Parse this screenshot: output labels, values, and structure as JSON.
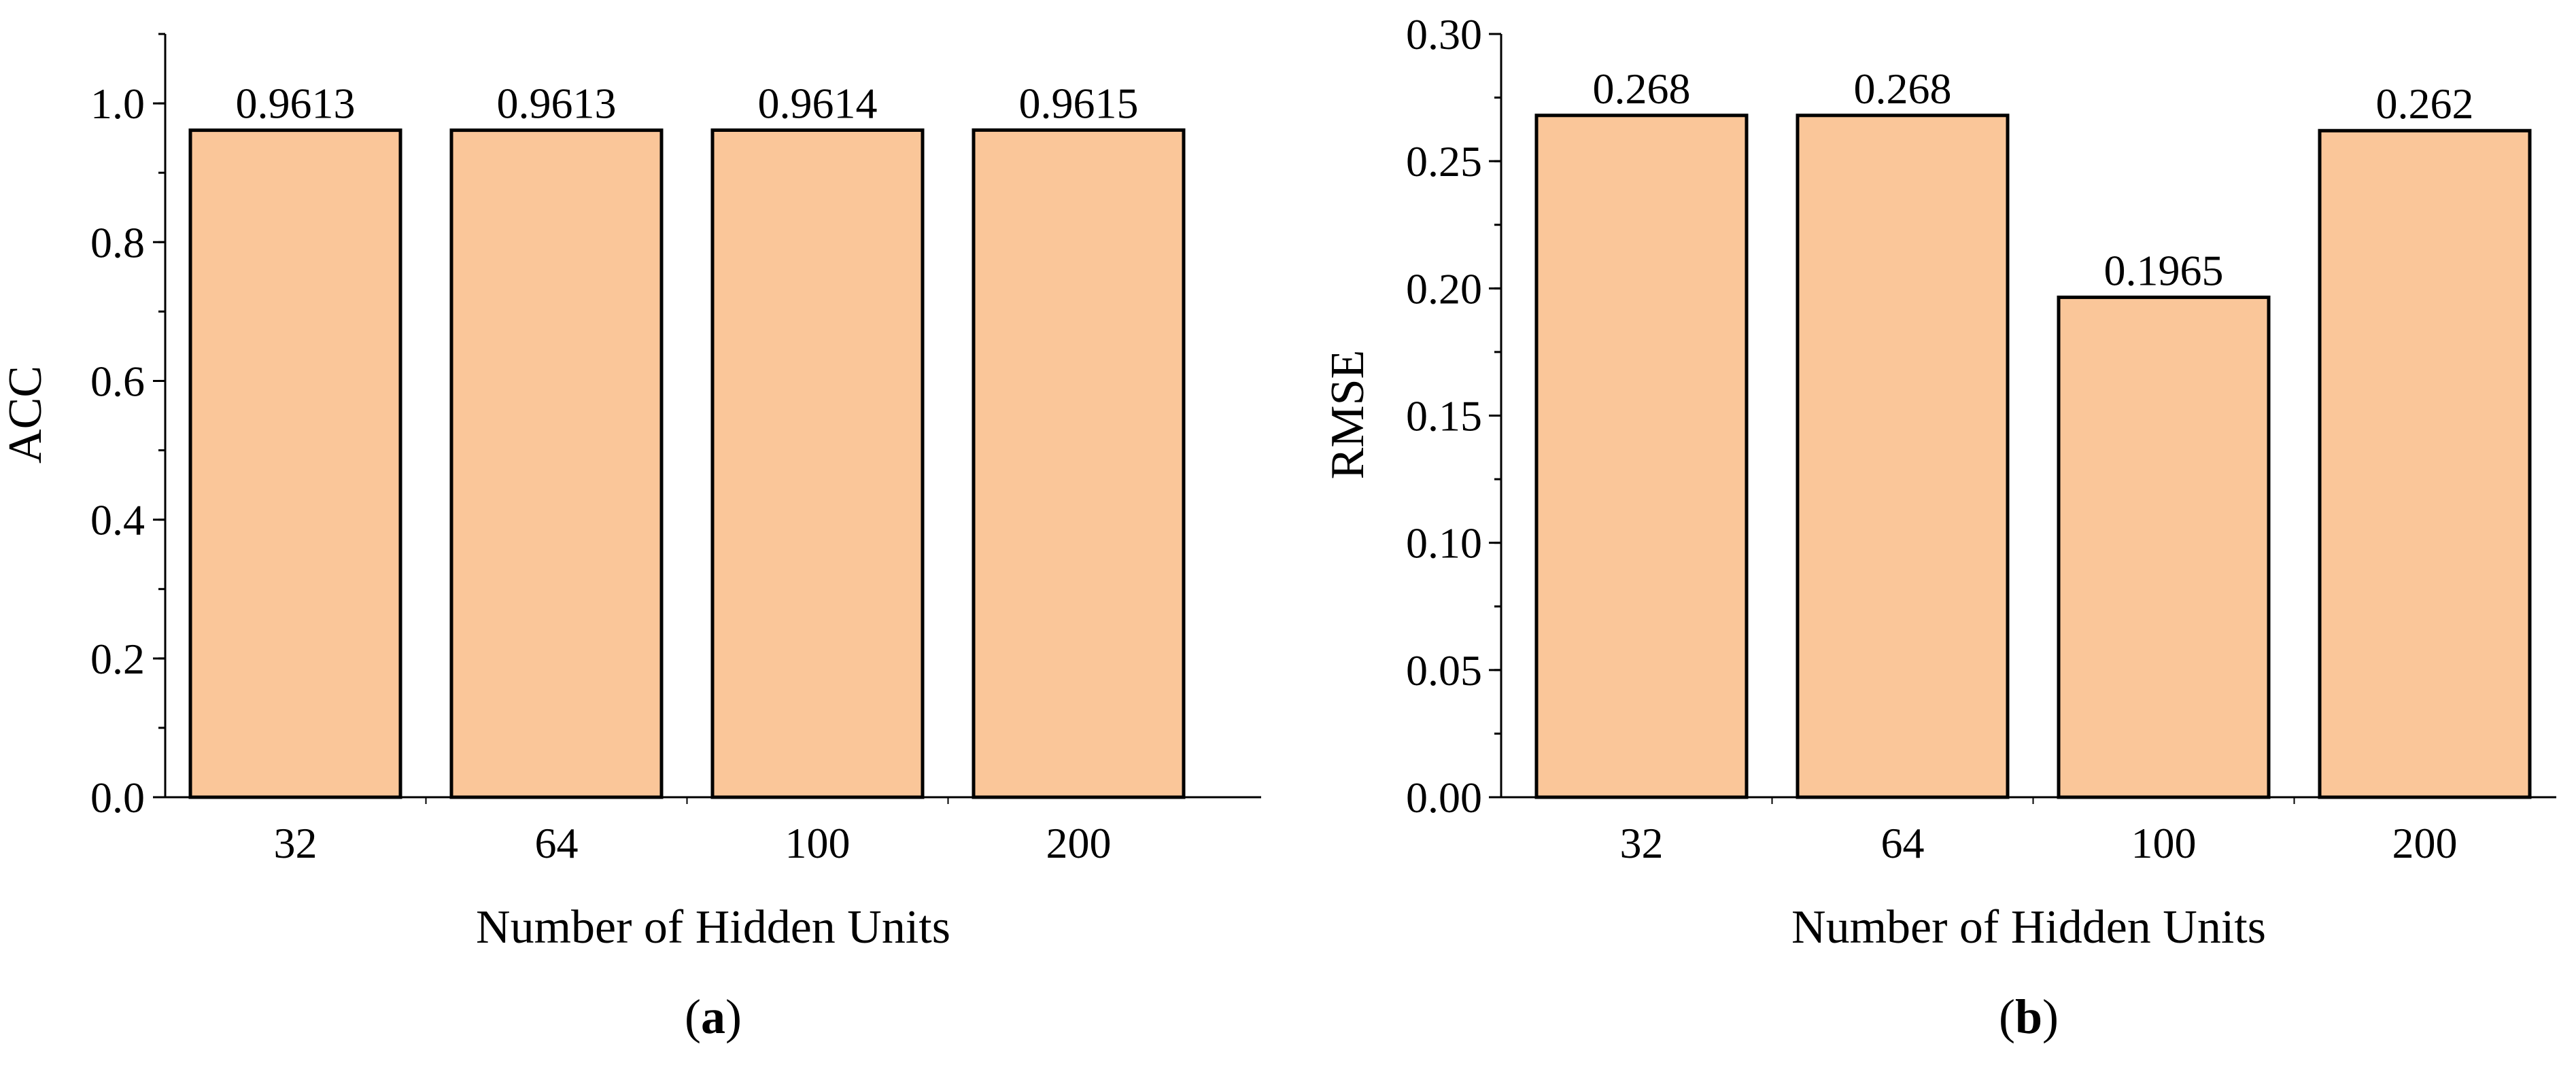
{
  "chart_data": [
    {
      "type": "bar",
      "panel_label": "a",
      "categories": [
        "32",
        "64",
        "100",
        "200"
      ],
      "values": [
        0.9613,
        0.9613,
        0.9614,
        0.9615
      ],
      "data_labels": [
        "0.9613",
        "0.9613",
        "0.9614",
        "0.9615"
      ],
      "xlabel": "Number of Hidden Units",
      "ylabel": "ACC",
      "ylim": [
        0,
        1.1
      ],
      "yticks": [
        0.0,
        0.2,
        0.4,
        0.6,
        0.8,
        1.0
      ],
      "ytick_labels": [
        "0.0",
        "0.2",
        "0.4",
        "0.6",
        "0.8",
        "1.0"
      ],
      "ytick_minor_step": 0.1,
      "grid": false,
      "bar_color": "#fac699",
      "edge_color": "#000000"
    },
    {
      "type": "bar",
      "panel_label": "b",
      "categories": [
        "32",
        "64",
        "100",
        "200"
      ],
      "values": [
        0.268,
        0.268,
        0.1965,
        0.262
      ],
      "data_labels": [
        "0.268",
        "0.268",
        "0.1965",
        "0.262"
      ],
      "xlabel": "Number of Hidden Units",
      "ylabel": "RMSE",
      "ylim": [
        0,
        0.3
      ],
      "yticks": [
        0.0,
        0.05,
        0.1,
        0.15,
        0.2,
        0.25,
        0.3
      ],
      "ytick_labels": [
        "0.00",
        "0.05",
        "0.10",
        "0.15",
        "0.20",
        "0.25",
        "0.30"
      ],
      "ytick_minor_step": 0.025,
      "grid": false,
      "bar_color": "#fac699",
      "edge_color": "#000000"
    }
  ]
}
